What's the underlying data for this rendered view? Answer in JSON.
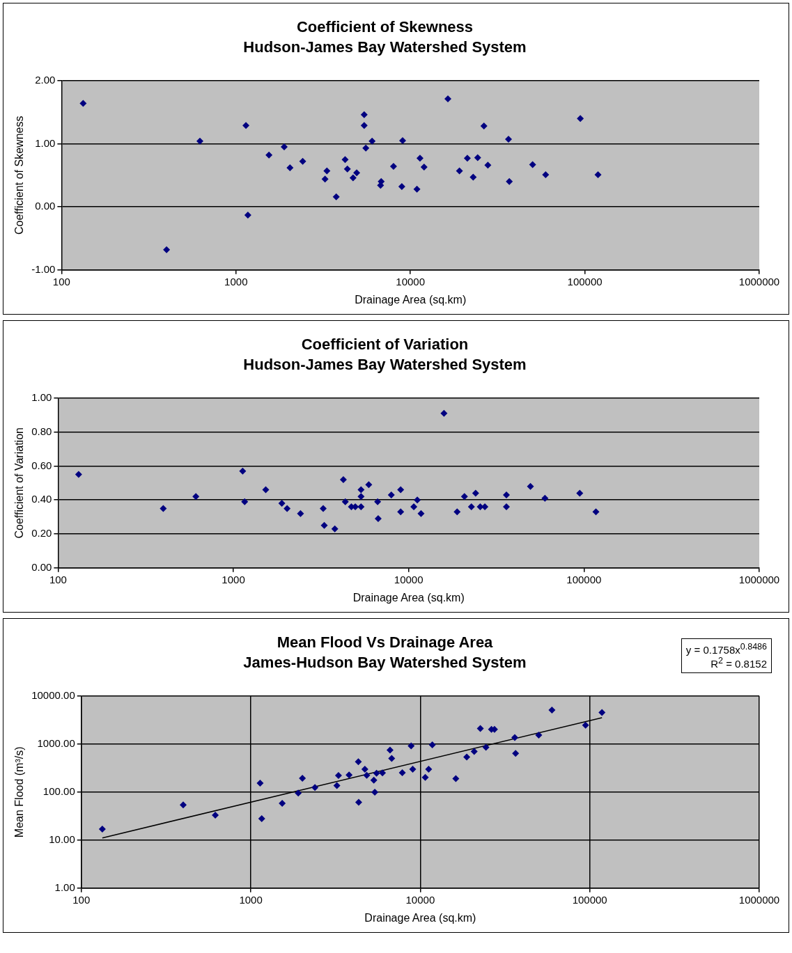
{
  "chart_data": [
    {
      "type": "scatter",
      "title": "Coefficient of Skewness",
      "subtitle": "Hudson-James Bay Watershed System",
      "xlabel": "Drainage Area (sq.km)",
      "ylabel": "Coefficient of Skewness",
      "log": "x",
      "grid": "y",
      "marker": "diamond",
      "legend": false,
      "xlim": [
        100,
        1000000
      ],
      "xticks": [
        100,
        1000,
        10000,
        100000,
        1000000
      ],
      "ylim": [
        -1,
        2
      ],
      "yticks": [
        {
          "value": -1,
          "label": "-1.00"
        },
        {
          "value": 0,
          "label": "0.00"
        },
        {
          "value": 1,
          "label": "1.00"
        },
        {
          "value": 2,
          "label": "2.00"
        }
      ],
      "series": [
        {
          "color": "#000080",
          "x": [
            133,
            400,
            621,
            1140,
            1170,
            1545,
            1890,
            2040,
            2413,
            3240,
            3320,
            3755,
            4223,
            4350,
            4690,
            4920,
            5430,
            5430,
            5550,
            6030,
            6740,
            6800,
            8000,
            8930,
            9020,
            10900,
            11350,
            11980,
            16400,
            19100,
            21200,
            22900,
            24300,
            26400,
            27800,
            36500,
            36900,
            50200,
            59600,
            94200,
            119000
          ],
          "values": [
            1.64,
            -0.68,
            1.04,
            1.29,
            -0.13,
            0.82,
            0.95,
            0.62,
            0.72,
            0.44,
            0.57,
            0.16,
            0.75,
            0.6,
            0.46,
            0.54,
            1.46,
            1.29,
            0.93,
            1.04,
            0.34,
            0.4,
            0.64,
            0.32,
            1.05,
            0.28,
            0.77,
            0.63,
            1.71,
            0.57,
            0.77,
            0.47,
            0.78,
            1.28,
            0.66,
            1.07,
            0.4,
            0.67,
            0.51,
            1.4,
            0.51
          ]
        }
      ]
    },
    {
      "type": "scatter",
      "title": "Coefficient of Variation",
      "subtitle": "Hudson-James Bay Watershed System",
      "xlabel": "Drainage Area (sq.km)",
      "ylabel": "Coefficient of Variation",
      "log": "x",
      "grid": "y",
      "marker": "diamond",
      "legend": false,
      "xlim": [
        100,
        1000000
      ],
      "xticks": [
        100,
        1000,
        10000,
        100000,
        1000000
      ],
      "ylim": [
        0,
        1
      ],
      "yticks": [
        {
          "value": 0,
          "label": "0.00"
        },
        {
          "value": 0.2,
          "label": "0.20"
        },
        {
          "value": 0.4,
          "label": "0.40"
        },
        {
          "value": 0.6,
          "label": "0.60"
        },
        {
          "value": 0.8,
          "label": "0.80"
        },
        {
          "value": 1,
          "label": "1.00"
        }
      ],
      "series": [
        {
          "color": "#000080",
          "x": [
            131,
            398,
            611,
            1130,
            1160,
            1530,
            1890,
            2025,
            2415,
            3255,
            3300,
            3790,
            4240,
            4350,
            4710,
            4960,
            5350,
            5350,
            5350,
            5920,
            6650,
            6700,
            7960,
            9000,
            9000,
            10700,
            11200,
            11760,
            15900,
            18900,
            20800,
            22800,
            24100,
            25600,
            27200,
            36100,
            36100,
            49500,
            59900,
            94600,
            117000
          ],
          "values": [
            0.55,
            0.35,
            0.42,
            0.57,
            0.39,
            0.46,
            0.38,
            0.35,
            0.32,
            0.35,
            0.25,
            0.23,
            0.52,
            0.39,
            0.36,
            0.36,
            0.46,
            0.42,
            0.36,
            0.49,
            0.39,
            0.29,
            0.43,
            0.46,
            0.33,
            0.36,
            0.4,
            0.32,
            0.91,
            0.33,
            0.42,
            0.36,
            0.44,
            0.36,
            0.36,
            0.43,
            0.36,
            0.48,
            0.41,
            0.44,
            0.33
          ]
        }
      ]
    },
    {
      "type": "scatter",
      "title": "Mean Flood Vs Drainage Area",
      "subtitle": "James-Hudson Bay Watershed System",
      "xlabel": "Drainage Area (sq.km)",
      "ylabel": "Mean Flood (m³/s)",
      "log": "xy",
      "grid": true,
      "marker": "diamond",
      "legend": false,
      "annotations": [
        "y = 0.1758x$^{0.8486}$",
        "R$^{2}$ = 0.8152"
      ],
      "xlim": [
        100,
        1000000
      ],
      "xticks": [
        100,
        1000,
        10000,
        100000,
        1000000
      ],
      "ylim": [
        1,
        10000
      ],
      "yticks": [
        {
          "value": 1,
          "label": "1.00"
        },
        {
          "value": 10,
          "label": "10.00"
        },
        {
          "value": 100,
          "label": "100.00"
        },
        {
          "value": 1000,
          "label": "1000.00"
        },
        {
          "value": 10000,
          "label": "10000.00"
        }
      ],
      "series": [
        {
          "color": "#000080",
          "x": [
            133,
            399,
            617,
            1135,
            1160,
            1532,
            1905,
            2015,
            2390,
            3220,
            3290,
            3800,
            4310,
            4330,
            4710,
            4830,
            5320,
            5390,
            5520,
            5980,
            6630,
            6780,
            7830,
            8830,
            9020,
            10700,
            11200,
            11770,
            16200,
            18800,
            20800,
            22600,
            24400,
            26300,
            27400,
            36100,
            36500,
            50000,
            59800,
            94400,
            118000
          ],
          "values": [
            17,
            54,
            33,
            153,
            28,
            58,
            95,
            194,
            124,
            136,
            221,
            227,
            428,
            61,
            300,
            224,
            177,
            99,
            246,
            251,
            748,
            503,
            252,
            912,
            300,
            202,
            300,
            961,
            191,
            536,
            700,
            2100,
            853,
            2020,
            2020,
            1360,
            638,
            1530,
            5090,
            2460,
            4520
          ]
        },
        {
          "type": "line",
          "color": "#000000",
          "marker": "none",
          "x": [
            133,
            118000
          ],
          "values": [
            11.1,
            3542
          ]
        }
      ]
    }
  ]
}
